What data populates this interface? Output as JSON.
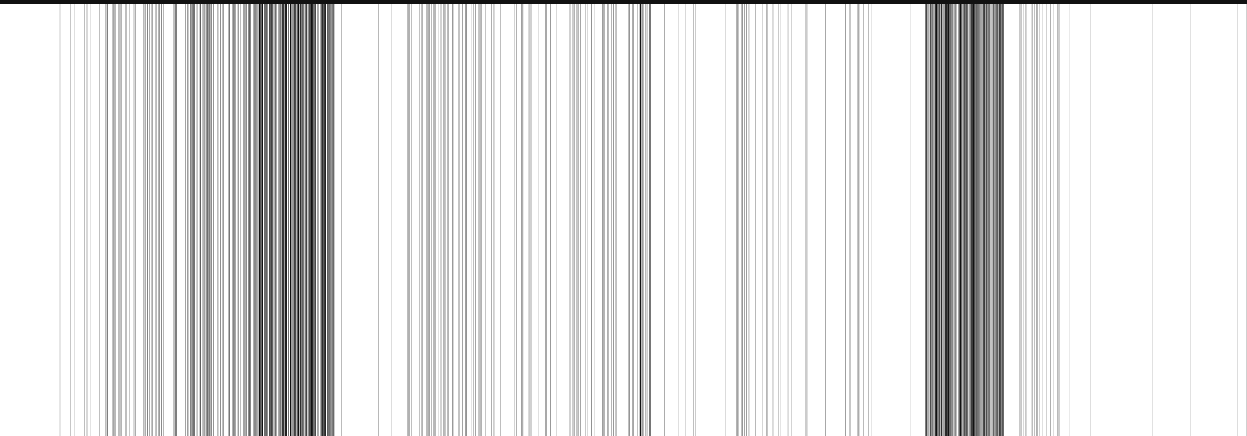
{
  "image": {
    "description_colors": {
      "background": "#ffffff",
      "ink": "#000000"
    },
    "top_border": true
  }
}
